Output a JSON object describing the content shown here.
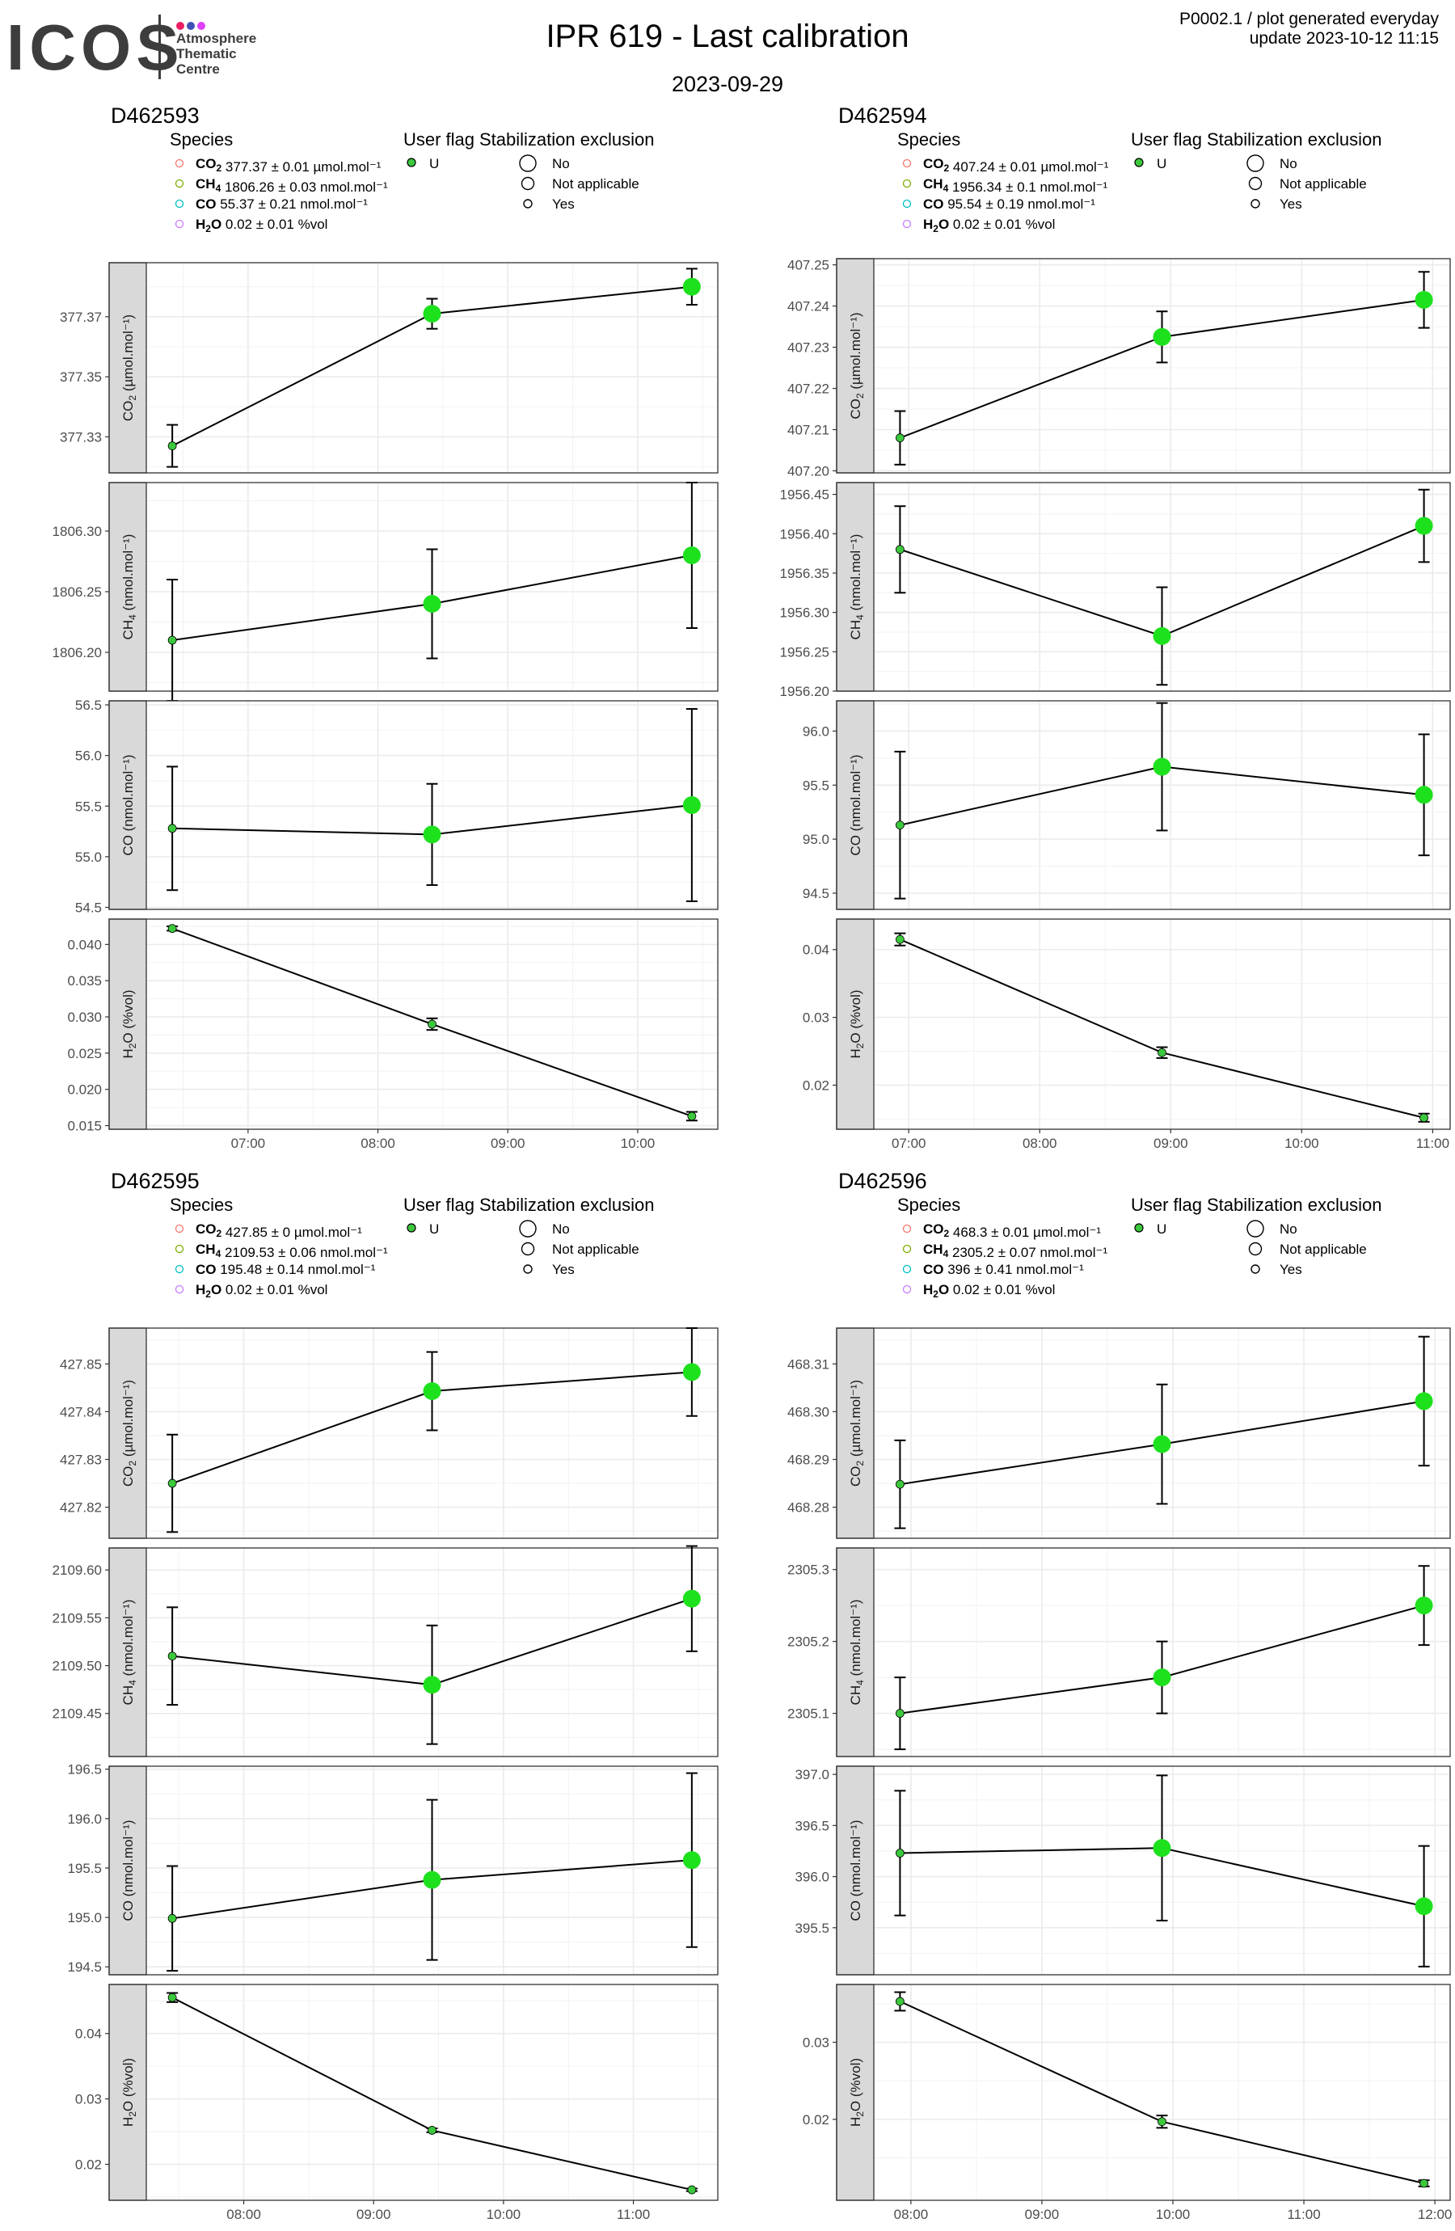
{
  "header": {
    "logo_main": "ICOS",
    "logo_lines": [
      "Atmosphere",
      "Thematic",
      "Centre"
    ],
    "logo_dot_colors": [
      "#e91e63",
      "#3f51b5",
      "#e040fb"
    ],
    "title": "IPR 619 - Last calibration",
    "date": "2023-09-29",
    "meta_line1": "P0002.1 / plot generated everyday",
    "meta_line2": "update  2023-10-12 11:15"
  },
  "legend_labels": {
    "species_title": "Species",
    "user_flag_title": "User flag",
    "stabilization_title": "Stabilization exclusion",
    "user_flag_entry": "U",
    "stab_entries": [
      "No",
      "Not applicable",
      "Yes"
    ]
  },
  "colors": {
    "point_fill": "#1ee11e",
    "point_fill_small": "#3cc83c",
    "species_co2": "#f8766d",
    "species_ch4": "#7cae00",
    "species_co": "#00bfc4",
    "species_h2o": "#c77cff",
    "strip": "#d9d9d9",
    "grid": "#ebebeb"
  },
  "chart_data": [
    {
      "type": "scatter",
      "title": "D462593",
      "x_unit": "time of day",
      "x_ticks": [
        "07:00",
        "08:00",
        "09:00",
        "10:00"
      ],
      "x": [
        "06:25",
        "08:25",
        "10:25"
      ],
      "legend": [
        {
          "name": "CO2",
          "text": "377.37 ± 0.01 µmol.mol⁻¹"
        },
        {
          "name": "CH4",
          "text": "1806.26 ± 0.03 nmol.mol⁻¹"
        },
        {
          "name": "CO",
          "text": "55.37 ± 0.21 nmol.mol⁻¹"
        },
        {
          "name": "H2O",
          "text": "0.02 ± 0.01 %vol"
        }
      ],
      "panels": [
        {
          "species": "CO2",
          "ylabel_unit": "(µmol.mol⁻¹)",
          "yticks": [
            "377.33",
            "377.35",
            "377.37"
          ],
          "ylim": [
            377.318,
            377.388
          ],
          "y": [
            377.327,
            377.371,
            377.38
          ],
          "err": [
            0.007,
            0.005,
            0.006
          ],
          "size": [
            1,
            2,
            2
          ]
        },
        {
          "species": "CH4",
          "ylabel_unit": "(nmol.mol⁻¹)",
          "yticks": [
            "1806.20",
            "1806.25",
            "1806.30"
          ],
          "ylim": [
            1806.168,
            1806.34
          ],
          "y": [
            1806.21,
            1806.24,
            1806.28
          ],
          "err": [
            0.05,
            0.045,
            0.06
          ],
          "size": [
            1,
            2,
            2
          ]
        },
        {
          "species": "CO",
          "ylabel_unit": "(nmol.mol⁻¹)",
          "yticks": [
            "54.5",
            "55.0",
            "55.5",
            "56.0",
            "56.5"
          ],
          "ylim": [
            54.48,
            56.54
          ],
          "y": [
            55.28,
            55.22,
            55.51
          ],
          "err": [
            0.61,
            0.5,
            0.95
          ],
          "size": [
            1,
            2,
            2
          ]
        },
        {
          "species": "H2O",
          "ylabel_unit": "(%vol)",
          "yticks": [
            "0.015",
            "0.020",
            "0.025",
            "0.030",
            "0.035",
            "0.040"
          ],
          "ylim": [
            0.0145,
            0.0435
          ],
          "y": [
            0.0422,
            0.029,
            0.0163
          ],
          "err": [
            0.0003,
            0.0008,
            0.0006
          ],
          "size": [
            1,
            1,
            1
          ]
        }
      ]
    },
    {
      "type": "scatter",
      "title": "D462594",
      "x_unit": "time of day",
      "x_ticks": [
        "07:00",
        "08:00",
        "09:00",
        "10:00",
        "11:00"
      ],
      "x": [
        "06:56",
        "08:56",
        "10:56"
      ],
      "legend": [
        {
          "name": "CO2",
          "text": "407.24 ± 0.01 µmol.mol⁻¹"
        },
        {
          "name": "CH4",
          "text": "1956.34 ± 0.1 nmol.mol⁻¹"
        },
        {
          "name": "CO",
          "text": "95.54 ± 0.19 nmol.mol⁻¹"
        },
        {
          "name": "H2O",
          "text": "0.02 ± 0.01 %vol"
        }
      ],
      "panels": [
        {
          "species": "CO2",
          "ylabel_unit": "(µmol.mol⁻¹)",
          "yticks": [
            "407.20",
            "407.21",
            "407.22",
            "407.23",
            "407.24",
            "407.25"
          ],
          "ylim": [
            407.1995,
            407.2515
          ],
          "y": [
            407.208,
            407.2325,
            407.2415
          ],
          "err": [
            0.0065,
            0.0062,
            0.0068
          ],
          "size": [
            1,
            2,
            2
          ]
        },
        {
          "species": "CH4",
          "ylabel_unit": "(nmol.mol⁻¹)",
          "yticks": [
            "1956.20",
            "1956.25",
            "1956.30",
            "1956.35",
            "1956.40",
            "1956.45"
          ],
          "ylim": [
            1956.2,
            1956.465
          ],
          "y": [
            1956.38,
            1956.27,
            1956.41
          ],
          "err": [
            0.055,
            0.062,
            0.046
          ],
          "size": [
            1,
            2,
            2
          ]
        },
        {
          "species": "CO",
          "ylabel_unit": "(nmol.mol⁻¹)",
          "yticks": [
            "94.5",
            "95.0",
            "95.5",
            "96.0"
          ],
          "ylim": [
            94.35,
            96.28
          ],
          "y": [
            95.13,
            95.67,
            95.41
          ],
          "err": [
            0.68,
            0.59,
            0.56
          ],
          "size": [
            1,
            2,
            2
          ]
        },
        {
          "species": "H2O",
          "ylabel_unit": "(%vol)",
          "yticks": [
            "0.02",
            "0.03",
            "0.04"
          ],
          "ylim": [
            0.0135,
            0.0445
          ],
          "y": [
            0.0415,
            0.0248,
            0.0152
          ],
          "err": [
            0.0009,
            0.0008,
            0.0006
          ],
          "size": [
            1,
            1,
            1
          ]
        }
      ]
    },
    {
      "type": "scatter",
      "title": "D462595",
      "x_unit": "time of day",
      "x_ticks": [
        "08:00",
        "09:00",
        "10:00",
        "11:00"
      ],
      "x": [
        "07:27",
        "09:27",
        "11:27"
      ],
      "legend": [
        {
          "name": "CO2",
          "text": "427.85 ± 0 µmol.mol⁻¹"
        },
        {
          "name": "CH4",
          "text": "2109.53 ± 0.06 nmol.mol⁻¹"
        },
        {
          "name": "CO",
          "text": "195.48 ± 0.14 nmol.mol⁻¹"
        },
        {
          "name": "H2O",
          "text": "0.02 ± 0.01 %vol"
        }
      ],
      "panels": [
        {
          "species": "CO2",
          "ylabel_unit": "(µmol.mol⁻¹)",
          "yticks": [
            "427.82",
            "427.83",
            "427.84",
            "427.85"
          ],
          "ylim": [
            427.8135,
            427.8575
          ],
          "y": [
            427.825,
            427.8443,
            427.8483
          ],
          "err": [
            0.0102,
            0.0082,
            0.0092
          ],
          "size": [
            1,
            2,
            2
          ]
        },
        {
          "species": "CH4",
          "ylabel_unit": "(nmol.mol⁻¹)",
          "yticks": [
            "2109.45",
            "2109.50",
            "2109.55",
            "2109.60"
          ],
          "ylim": [
            2109.405,
            2109.623
          ],
          "y": [
            2109.51,
            2109.48,
            2109.57
          ],
          "err": [
            0.051,
            0.062,
            0.055
          ],
          "size": [
            1,
            2,
            2
          ]
        },
        {
          "species": "CO",
          "ylabel_unit": "(nmol.mol⁻¹)",
          "yticks": [
            "194.5",
            "195.0",
            "195.5",
            "196.0",
            "196.5"
          ],
          "ylim": [
            194.42,
            196.53
          ],
          "y": [
            194.99,
            195.38,
            195.58
          ],
          "err": [
            0.53,
            0.81,
            0.88
          ],
          "size": [
            1,
            2,
            2
          ]
        },
        {
          "species": "H2O",
          "ylabel_unit": "(%vol)",
          "yticks": [
            "0.02",
            "0.03",
            "0.04"
          ],
          "ylim": [
            0.0145,
            0.0475
          ],
          "y": [
            0.0455,
            0.0252,
            0.0161
          ],
          "err": [
            0.0007,
            0.0003,
            0.0002
          ],
          "size": [
            1,
            1,
            1
          ]
        }
      ]
    },
    {
      "type": "scatter",
      "title": "D462596",
      "x_unit": "time of day",
      "x_ticks": [
        "08:00",
        "09:00",
        "10:00",
        "11:00",
        "12:00"
      ],
      "x": [
        "07:55",
        "09:55",
        "11:55"
      ],
      "legend": [
        {
          "name": "CO2",
          "text": "468.3 ± 0.01 µmol.mol⁻¹"
        },
        {
          "name": "CH4",
          "text": "2305.2 ± 0.07 nmol.mol⁻¹"
        },
        {
          "name": "CO",
          "text": "396 ± 0.41 nmol.mol⁻¹"
        },
        {
          "name": "H2O",
          "text": "0.02 ± 0.01 %vol"
        }
      ],
      "panels": [
        {
          "species": "CO2",
          "ylabel_unit": "(µmol.mol⁻¹)",
          "yticks": [
            "468.28",
            "468.29",
            "468.30",
            "468.31"
          ],
          "ylim": [
            468.2735,
            468.3175
          ],
          "y": [
            468.2848,
            468.2932,
            468.3022
          ],
          "err": [
            0.0092,
            0.0125,
            0.0135
          ],
          "size": [
            1,
            2,
            2
          ]
        },
        {
          "species": "CH4",
          "ylabel_unit": "(nmol.mol⁻¹)",
          "yticks": [
            "2305.1",
            "2305.2",
            "2305.3"
          ],
          "ylim": [
            2305.04,
            2305.33
          ],
          "y": [
            2305.1,
            2305.15,
            2305.25
          ],
          "err": [
            0.05,
            0.05,
            0.055
          ],
          "size": [
            1,
            2,
            2
          ]
        },
        {
          "species": "CO",
          "ylabel_unit": "(nmol.mol⁻¹)",
          "yticks": [
            "395.5",
            "396.0",
            "396.5",
            "397.0"
          ],
          "ylim": [
            395.04,
            397.08
          ],
          "y": [
            396.23,
            396.28,
            395.71
          ],
          "err": [
            0.61,
            0.71,
            0.59
          ],
          "size": [
            1,
            2,
            2
          ]
        },
        {
          "species": "H2O",
          "ylabel_unit": "(%vol)",
          "yticks": [
            "0.02",
            "0.03"
          ],
          "ylim": [
            0.0095,
            0.0375
          ],
          "y": [
            0.0353,
            0.0197,
            0.0117
          ],
          "err": [
            0.0012,
            0.0008,
            0.0004
          ],
          "size": [
            1,
            1,
            1
          ]
        }
      ]
    }
  ]
}
